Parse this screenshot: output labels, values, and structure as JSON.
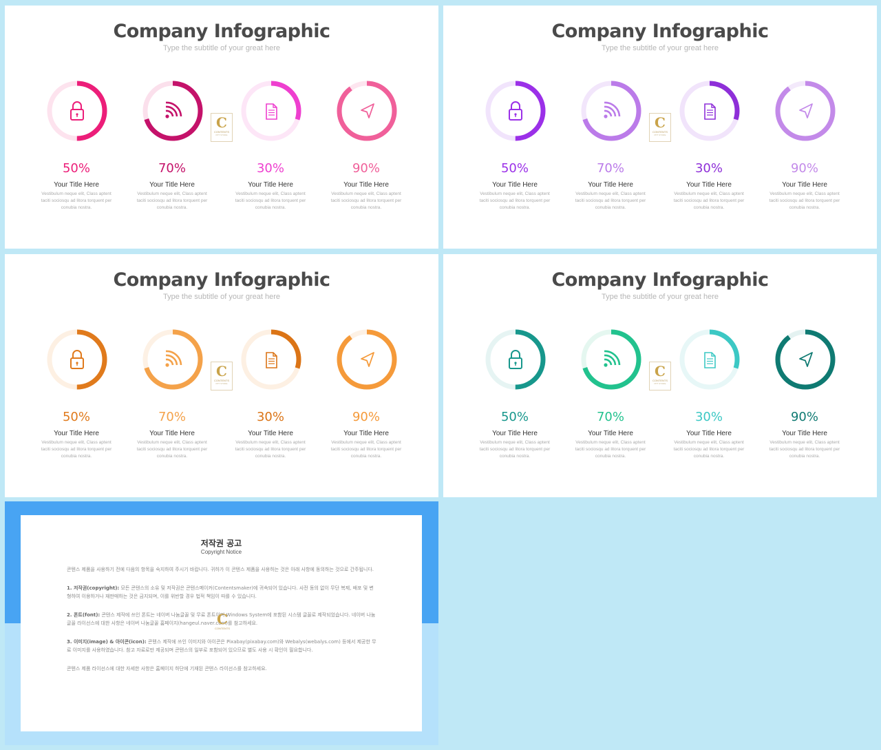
{
  "slides": [
    {
      "title": "Company Infographic",
      "subtitle": "Type the subtitle of your great here",
      "items": [
        {
          "percent": 50,
          "label": "50%",
          "color": "#ec1e79",
          "track": "#fde3ee",
          "icon": "lock-icon",
          "title": "Your Title Here",
          "desc": "Vestibulum neque  elit, Class aptent taciti sociosqu ad litora torquent per conubia nostra."
        },
        {
          "percent": 70,
          "label": "70%",
          "color": "#c4126a",
          "track": "#fbe0ec",
          "icon": "rss-icon",
          "title": "Your Title Here",
          "desc": "Vestibulum neque  elit, Class aptent taciti sociosqu ad litora torquent per conubia nostra."
        },
        {
          "percent": 30,
          "label": "30%",
          "color": "#ee3fcf",
          "track": "#fde6f7",
          "icon": "document-icon",
          "title": "Your Title Here",
          "desc": "Vestibulum neque  elit, Class aptent taciti sociosqu ad litora torquent per conubia nostra."
        },
        {
          "percent": 90,
          "label": "90%",
          "color": "#f0609a",
          "track": "#fde5ef",
          "icon": "navigation-arrow-icon",
          "title": "Your Title Here",
          "desc": "Vestibulum neque  elit, Class aptent taciti sociosqu ad litora torquent per conubia nostra."
        }
      ]
    },
    {
      "title": "Company Infographic",
      "subtitle": "Type the subtitle of your great here",
      "items": [
        {
          "percent": 50,
          "label": "50%",
          "color": "#9b30e8",
          "track": "#f1e4fc",
          "icon": "lock-icon",
          "title": "Your Title Here",
          "desc": "Vestibulum neque  elit, Class aptent taciti sociosqu ad litora torquent per conubia nostra."
        },
        {
          "percent": 70,
          "label": "70%",
          "color": "#bb7be9",
          "track": "#f2e6fb",
          "icon": "rss-icon",
          "title": "Your Title Here",
          "desc": "Vestibulum neque  elit, Class aptent taciti sociosqu ad litora torquent per conubia nostra."
        },
        {
          "percent": 30,
          "label": "30%",
          "color": "#8e2fd8",
          "track": "#f1e4fb",
          "icon": "document-icon",
          "title": "Your Title Here",
          "desc": "Vestibulum neque  elit, Class aptent taciti sociosqu ad litora torquent per conubia nostra."
        },
        {
          "percent": 90,
          "label": "90%",
          "color": "#c38ae9",
          "track": "#f3e9fb",
          "icon": "navigation-arrow-icon",
          "title": "Your Title Here",
          "desc": "Vestibulum neque  elit, Class aptent taciti sociosqu ad litora torquent per conubia nostra."
        }
      ]
    },
    {
      "title": "Company Infographic",
      "subtitle": "Type the subtitle of your great here",
      "items": [
        {
          "percent": 50,
          "label": "50%",
          "color": "#e07a1c",
          "track": "#fdf0e3",
          "icon": "lock-icon",
          "title": "Your Title Here",
          "desc": "Vestibulum neque  elit, Class aptent taciti sociosqu ad litora torquent per conubia nostra."
        },
        {
          "percent": 70,
          "label": "70%",
          "color": "#f4a24a",
          "track": "#fdf1e5",
          "icon": "rss-icon",
          "title": "Your Title Here",
          "desc": "Vestibulum neque  elit, Class aptent taciti sociosqu ad litora torquent per conubia nostra."
        },
        {
          "percent": 30,
          "label": "30%",
          "color": "#db7416",
          "track": "#fdf0e3",
          "icon": "document-icon",
          "title": "Your Title Here",
          "desc": "Vestibulum neque  elit, Class aptent taciti sociosqu ad litora torquent per conubia nostra."
        },
        {
          "percent": 90,
          "label": "90%",
          "color": "#f59a3a",
          "track": "#fdf1e5",
          "icon": "navigation-arrow-icon",
          "title": "Your Title Here",
          "desc": "Vestibulum neque  elit, Class aptent taciti sociosqu ad litora torquent per conubia nostra."
        }
      ]
    },
    {
      "title": "Company Infographic",
      "subtitle": "Type the subtitle of your great here",
      "items": [
        {
          "percent": 50,
          "label": "50%",
          "color": "#17978c",
          "track": "#e6f4f3",
          "icon": "lock-icon",
          "title": "Your Title Here",
          "desc": "Vestibulum neque  elit, Class aptent taciti sociosqu ad litora torquent per conubia nostra."
        },
        {
          "percent": 70,
          "label": "70%",
          "color": "#22c28e",
          "track": "#e5f7f0",
          "icon": "rss-icon",
          "title": "Your Title Here",
          "desc": "Vestibulum neque  elit, Class aptent taciti sociosqu ad litora torquent per conubia nostra."
        },
        {
          "percent": 30,
          "label": "30%",
          "color": "#3cc8c4",
          "track": "#e7f7f7",
          "icon": "document-icon",
          "title": "Your Title Here",
          "desc": "Vestibulum neque  elit, Class aptent taciti sociosqu ad litora torquent per conubia nostra."
        },
        {
          "percent": 90,
          "label": "90%",
          "color": "#0f7a72",
          "track": "#e4f2f1",
          "icon": "navigation-arrow-icon",
          "title": "Your Title Here",
          "desc": "Vestibulum neque  elit, Class aptent taciti sociosqu ad litora torquent per conubia nostra."
        }
      ]
    }
  ],
  "logo": {
    "letter": "C",
    "text": "CONTENTS",
    "small": "PPT STORE"
  },
  "copyright": {
    "title": "저작권 공고",
    "subtitle": "Copyright Notice",
    "intro": "콘텐스 제품을 사용하기 전에 다음의 항목을 숙지하여 주시기 바랍니다. 귀하가 이 콘텐스 제품을 사용하는 것은 아래 사항에 동의하는 것으로 간주됩니다.",
    "p1_head": "1. 저작권(copyright):",
    "p1_body": " 모든 콘텐스의 소유 및 저작권은 콘텐스메이커(Contentsmaker)에 귀속되어 있습니다. 사전 동의 없이 무단 복제, 배포 및 변형하여 이용하거나 재판매하는 것은 금지되며, 이를 위반할 경우 법적 책임이 따를 수 있습니다.",
    "p2_head": "2. 폰트(font):",
    "p2_body": " 콘텐스 제작에 쓰인 폰트는 네이버 나눔글꼴 및 무료 폰트이며 Windows System에 포함된 시스템 글꼴로 제작되었습니다. 네이버 나눔글꼴 라이선스에 대한 사항은 네이버 나눔글꼴 홈페이지(hangeul.naver.com)를 참고하세요.",
    "p3_head": "3. 이미지(image) & 아이콘(icon):",
    "p3_body": " 콘텐스 제작에 쓰인 이미지와 아이콘은 Pixabay(pixabay.com)와 Webalys(webalys.com) 등에서 제공한 무료 이미지를 사용하였습니다. 참고 자료로만 제공되며 콘텐스의 일부로 포함되어 있으므로 별도 사용 시 확인이 필요합니다.",
    "outro": "콘텐스 제품 라이선스에 대한 자세한 사항은 홈페이지 하단에 기재된 콘텐스 라이선스를 참고하세요."
  }
}
